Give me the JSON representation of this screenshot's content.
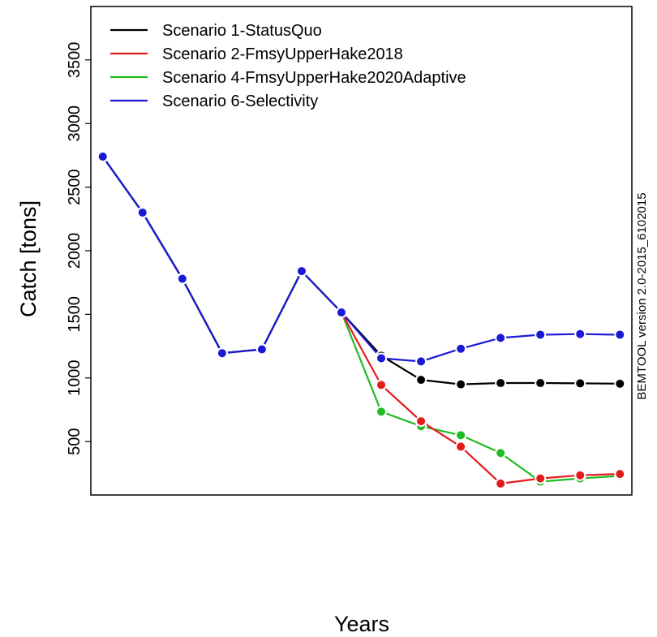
{
  "chart_data": {
    "type": "line",
    "title": "",
    "xlabel": "Years",
    "ylabel": "Catch [tons]",
    "side_note": "BEMTOOL version 2.0-2015_6102015",
    "x": [
      1,
      2,
      3,
      4,
      5,
      6,
      7,
      8,
      9,
      10,
      11,
      12,
      13,
      14
    ],
    "xlim": [
      0.7,
      14.3
    ],
    "ylim": [
      80,
      3920
    ],
    "yticks": [
      500,
      1000,
      1500,
      2000,
      2500,
      3000,
      3500
    ],
    "legend_position": "top-left",
    "grid": false,
    "series": [
      {
        "name": "Scenario 1-StatusQuo",
        "color": "#000000",
        "values": [
          2740,
          2300,
          1780,
          1195,
          1225,
          1840,
          1515,
          1175,
          985,
          950,
          960,
          960,
          958,
          955
        ]
      },
      {
        "name": "Scenario 2-FmsyUpperHake2018",
        "color": "#e31a1c",
        "values": [
          2740,
          2300,
          1780,
          1195,
          1225,
          1840,
          1515,
          945,
          660,
          460,
          170,
          210,
          235,
          245
        ]
      },
      {
        "name": "Scenario 4-FmsyUpperHake2020Adaptive",
        "color": "#22bb22",
        "values": [
          2740,
          2300,
          1780,
          1195,
          1225,
          1840,
          1515,
          735,
          620,
          550,
          410,
          185,
          210,
          230
        ]
      },
      {
        "name": "Scenario 6-Selectivity",
        "color": "#1a1ad6",
        "values": [
          2740,
          2300,
          1780,
          1195,
          1225,
          1840,
          1515,
          1155,
          1130,
          1230,
          1315,
          1340,
          1345,
          1340
        ]
      }
    ]
  }
}
